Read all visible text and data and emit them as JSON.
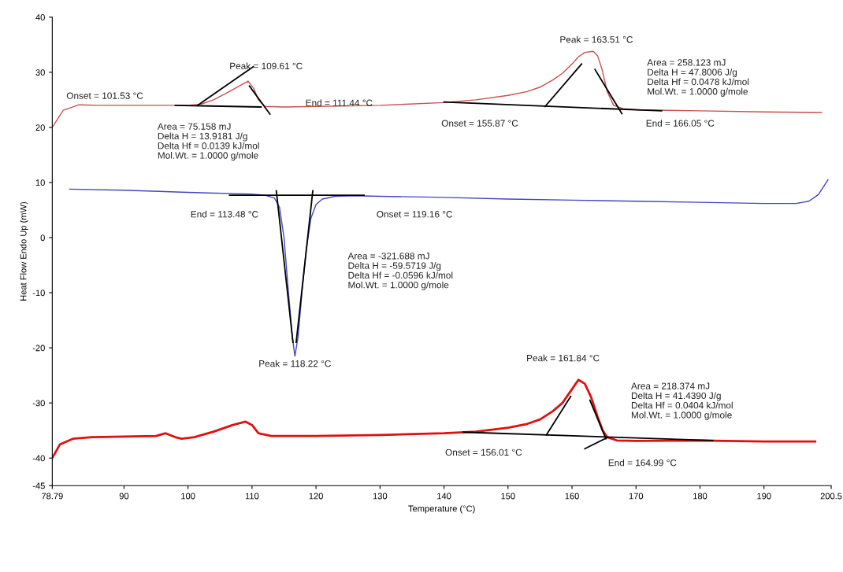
{
  "chart_data": {
    "type": "line",
    "xlabel": "Temperature (°C)",
    "ylabel": "Heat Flow Endo Up (mW)",
    "xlim": [
      78.79,
      200.5
    ],
    "xticks": [
      78.79,
      90,
      100,
      110,
      120,
      130,
      140,
      150,
      160,
      170,
      180,
      190,
      {
        "value": 200.5,
        "label": "200.5"
      }
    ],
    "ylim": [
      -45,
      40
    ],
    "yticks": [
      -45,
      -40,
      -30,
      -20,
      -10,
      0,
      10,
      20,
      30,
      40
    ],
    "grid": false,
    "legend": false,
    "marker": "none",
    "line_style": "solid",
    "series": [
      {
        "color": "#c85050",
        "x": [
          78.79,
          80.5,
          83,
          86,
          90,
          95,
          100,
          102,
          104,
          106,
          108,
          109.4,
          110.3,
          111,
          112,
          115,
          120,
          130,
          140,
          145,
          150,
          153,
          155,
          157,
          158.5,
          160,
          161,
          162,
          163.3,
          164,
          164.7,
          165.5,
          166.5,
          168,
          170,
          175,
          180,
          190,
          199
        ],
        "values": [
          20,
          23.1,
          24.1,
          24.0,
          24.0,
          24.0,
          24.0,
          24.2,
          25.0,
          26.2,
          27.5,
          28.4,
          27.0,
          25.0,
          23.8,
          23.7,
          23.8,
          24.0,
          24.5,
          25.0,
          25.8,
          26.5,
          27.3,
          28.6,
          29.8,
          31.5,
          32.8,
          33.6,
          33.8,
          33.0,
          30.5,
          26.5,
          24.0,
          23.4,
          23.2,
          23.1,
          23.0,
          22.8,
          22.7
        ]
      },
      {
        "color": "#4545c0",
        "x": [
          81.5,
          90,
          100,
          110,
          112,
          113.5,
          114.3,
          115,
          115.7,
          116.3,
          116.7,
          117.2,
          117.8,
          118.5,
          119.2,
          120,
          121,
          123,
          126,
          130,
          140,
          150,
          160,
          170,
          180,
          190,
          195,
          197,
          198.5,
          200
        ],
        "values": [
          8.8,
          8.6,
          8.2,
          7.9,
          7.7,
          7.2,
          5.5,
          0,
          -10,
          -18,
          -21.5,
          -18,
          -10,
          -2,
          3.5,
          6.0,
          7.0,
          7.5,
          7.6,
          7.5,
          7.3,
          7.0,
          6.8,
          6.6,
          6.4,
          6.2,
          6.2,
          6.6,
          7.8,
          10.5
        ]
      },
      {
        "color": "#e01010",
        "x": [
          78.79,
          80,
          82,
          85,
          90,
          95,
          96.5,
          98,
          99,
          101,
          104,
          107,
          109,
          110,
          111,
          113,
          120,
          130,
          140,
          145,
          150,
          153,
          155,
          157,
          158.5,
          160,
          161,
          162,
          163,
          164,
          164.8,
          165.5,
          167,
          170,
          180,
          190,
          198
        ],
        "values": [
          -40,
          -37.5,
          -36.5,
          -36.2,
          -36.1,
          -36.0,
          -35.5,
          -36.2,
          -36.5,
          -36.2,
          -35.2,
          -34.0,
          -33.4,
          -34.0,
          -35.5,
          -36.0,
          -36.0,
          -35.8,
          -35.5,
          -35.2,
          -34.5,
          -33.8,
          -33.0,
          -31.5,
          -30.0,
          -27.5,
          -25.8,
          -26.5,
          -29.0,
          -32.5,
          -35.0,
          -36.2,
          -36.8,
          -36.9,
          -36.8,
          -37.0,
          -37.0
        ]
      },
      {
        "color": "#000000",
        "x": [
          98,
          111.4
        ],
        "values": [
          24.0,
          23.7
        ]
      },
      {
        "color": "#000000",
        "x": [
          101.5,
          110.2
        ],
        "values": [
          24.0,
          31.0
        ]
      },
      {
        "color": "#000000",
        "x": [
          109.6,
          112.8
        ],
        "values": [
          27.5,
          22.4
        ]
      },
      {
        "color": "#000000",
        "x": [
          140,
          174
        ],
        "values": [
          24.6,
          23.0
        ]
      },
      {
        "color": "#000000",
        "x": [
          155.8,
          161.5
        ],
        "values": [
          23.8,
          31.5
        ]
      },
      {
        "color": "#000000",
        "x": [
          163.6,
          167.8
        ],
        "values": [
          30.5,
          22.5
        ]
      },
      {
        "color": "#000000",
        "x": [
          106.5,
          127.5
        ],
        "values": [
          7.7,
          7.7
        ]
      },
      {
        "color": "#000000",
        "x": [
          113.8,
          116.4
        ],
        "values": [
          8.5,
          -19
        ]
      },
      {
        "color": "#000000",
        "x": [
          119.5,
          116.9
        ],
        "values": [
          8.5,
          -19
        ]
      },
      {
        "color": "#000000",
        "x": [
          143,
          182
        ],
        "values": [
          -35.3,
          -36.8
        ]
      },
      {
        "color": "#000000",
        "x": [
          156,
          159.8
        ],
        "values": [
          -35.8,
          -28.8
        ]
      },
      {
        "color": "#000000",
        "x": [
          162.8,
          165.3
        ],
        "values": [
          -29.5,
          -36.5
        ]
      },
      {
        "color": "#000000",
        "x": [
          165.5,
          162
        ],
        "values": [
          -36.3,
          -38.3
        ]
      }
    ],
    "annotations": [
      "Peak = 109.61 °C",
      "Onset = 101.53 °C",
      "End = 111.44 °C",
      "Area = 75.158 mJ\nDelta H = 13.9181 J/g\nDelta Hf = 0.0139 kJ/mol\nMol.Wt. = 1.0000 g/mole",
      "Peak = 163.51 °C",
      "Area = 258.123 mJ\nDelta H = 47.8006 J/g\nDelta Hf = 0.0478 kJ/mol\nMol.Wt. = 1.0000 g/mole",
      "Onset = 155.87 °C",
      "End = 166.05 °C",
      "End = 113.48 °C",
      "Onset = 119.16 °C",
      "Area = -321.688 mJ\nDelta H = -59.5719 J/g\nDelta Hf = -0.0596 kJ/mol\nMol.Wt. = 1.0000 g/mole",
      "Peak = 118.22 °C",
      "Peak = 161.84 °C",
      "Area = 218.374 mJ\nDelta H = 41.4390 J/g\nDelta Hf = 0.0404 kJ/mol\nMol.Wt. = 1.0000 g/mole",
      "Onset = 156.01 °C",
      "End = 164.99 °C"
    ]
  }
}
